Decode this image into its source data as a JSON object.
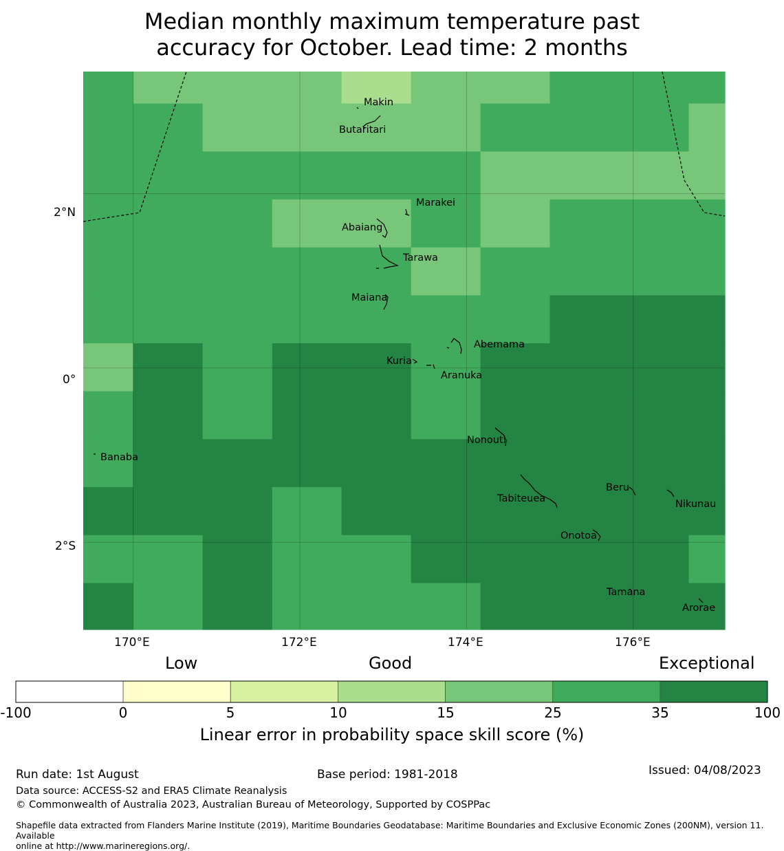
{
  "title": {
    "line1": "Median monthly maximum temperature past",
    "line2": "accuracy for October. Lead time: 2 months"
  },
  "map": {
    "lon_range": [
      169.4,
      177.1
    ],
    "lat_range": [
      -3.0,
      3.4
    ],
    "lon_ticks": [
      {
        "value": 170,
        "label": "170°E"
      },
      {
        "value": 172,
        "label": "172°E"
      },
      {
        "value": 174,
        "label": "174°E"
      },
      {
        "value": 176,
        "label": "176°E"
      }
    ],
    "lat_ticks": [
      {
        "value": 2,
        "label": "2°N"
      },
      {
        "value": 0,
        "label": "0°"
      },
      {
        "value": -2,
        "label": "2°S"
      }
    ],
    "grid_lines": true,
    "places": [
      {
        "name": "Makin",
        "lon": 172.95,
        "lat": 3.2
      },
      {
        "name": "Butaritari",
        "lon": 172.78,
        "lat": 2.9
      },
      {
        "name": "Marakei",
        "lon": 173.4,
        "lat": 2.0
      },
      {
        "name": "Abaiang",
        "lon": 172.9,
        "lat": 1.8
      },
      {
        "name": "Tarawa",
        "lon": 173.1,
        "lat": 1.4
      },
      {
        "name": "Maiana",
        "lon": 173.0,
        "lat": 0.9
      },
      {
        "name": "Abemama",
        "lon": 173.85,
        "lat": 0.4
      },
      {
        "name": "Kuria",
        "lon": 173.4,
        "lat": 0.22
      },
      {
        "name": "Aranuka",
        "lon": 173.6,
        "lat": 0.16
      },
      {
        "name": "Nonouti",
        "lon": 174.35,
        "lat": -0.65
      },
      {
        "name": "Banaba",
        "lon": 169.55,
        "lat": -0.86
      },
      {
        "name": "Tabiteuea",
        "lon": 174.8,
        "lat": -1.4
      },
      {
        "name": "Beru",
        "lon": 176.0,
        "lat": -1.33
      },
      {
        "name": "Nikunau",
        "lon": 176.45,
        "lat": -1.35
      },
      {
        "name": "Onotoa",
        "lon": 175.55,
        "lat": -1.8
      },
      {
        "name": "Tamana",
        "lon": 175.98,
        "lat": -2.5
      },
      {
        "name": "Arorae",
        "lon": 176.82,
        "lat": -2.65
      }
    ]
  },
  "chart_data": {
    "type": "heatmap",
    "category_values": [
      20,
      30,
      40
    ],
    "value_meaning": "skill score category midpoints (%)",
    "cell_lon_edges": [
      169.4,
      170.0,
      170.833,
      171.667,
      172.5,
      173.333,
      174.167,
      175.0,
      175.833,
      176.667,
      177.1
    ],
    "cell_lat_edges": [
      3.4,
      3.033,
      2.483,
      1.933,
      1.383,
      0.833,
      0.283,
      -0.267,
      -0.817,
      -1.367,
      -1.917,
      -2.467,
      -3.0
    ],
    "grid": [
      [
        30,
        20,
        20,
        20,
        12,
        20,
        20,
        30,
        30,
        30
      ],
      [
        30,
        30,
        20,
        20,
        20,
        20,
        30,
        30,
        30,
        20
      ],
      [
        30,
        30,
        30,
        30,
        30,
        30,
        20,
        20,
        20,
        20
      ],
      [
        30,
        30,
        30,
        20,
        20,
        30,
        20,
        30,
        30,
        30
      ],
      [
        30,
        30,
        30,
        30,
        30,
        20,
        30,
        30,
        30,
        30
      ],
      [
        30,
        30,
        30,
        30,
        30,
        30,
        30,
        40,
        40,
        40
      ],
      [
        20,
        40,
        30,
        40,
        40,
        30,
        40,
        40,
        40,
        40
      ],
      [
        30,
        40,
        30,
        40,
        40,
        30,
        40,
        40,
        40,
        40
      ],
      [
        30,
        40,
        40,
        40,
        40,
        40,
        40,
        40,
        40,
        40
      ],
      [
        40,
        40,
        40,
        30,
        40,
        40,
        40,
        40,
        40,
        40
      ],
      [
        30,
        30,
        40,
        30,
        30,
        40,
        40,
        40,
        40,
        30
      ],
      [
        40,
        30,
        40,
        30,
        30,
        30,
        40,
        40,
        40,
        40
      ]
    ]
  },
  "colorbar": {
    "category_labels": {
      "low": "Low",
      "good": "Good",
      "exceptional": "Exceptional"
    },
    "bins": [
      {
        "from": -100,
        "to": 0,
        "color": "#ffffff"
      },
      {
        "from": 0,
        "to": 5,
        "color": "#fefecb"
      },
      {
        "from": 5,
        "to": 10,
        "color": "#d9efa2"
      },
      {
        "from": 10,
        "to": 15,
        "color": "#aadd8e"
      },
      {
        "from": 15,
        "to": 25,
        "color": "#78c67a"
      },
      {
        "from": 25,
        "to": 35,
        "color": "#41ab5d"
      },
      {
        "from": 35,
        "to": 100,
        "color": "#238443"
      }
    ],
    "tick_labels": [
      "-100",
      "0",
      "5",
      "10",
      "15",
      "25",
      "35",
      "100"
    ],
    "title": "Linear error in probability space skill score (%)"
  },
  "footer": {
    "run_date": "Run date: 1st August",
    "base_period": "Base period: 1981-2018",
    "issued": "Issued: 04/08/2023",
    "data_source": "Data source: ACCESS-S2 and ERA5 Climate Reanalysis",
    "copyright": "© Commonwealth of Australia 2023, Australian Bureau of Meteorology, Supported by COSPPac",
    "shapefile_line1": "Shapefile data extracted from Flanders Marine Institute (2019), Maritime Boundaries Geodatabase: Maritime Boundaries and Exclusive Economic Zones (200NM), version 11. Available",
    "shapefile_line2": "online at http://www.marineregions.org/."
  }
}
